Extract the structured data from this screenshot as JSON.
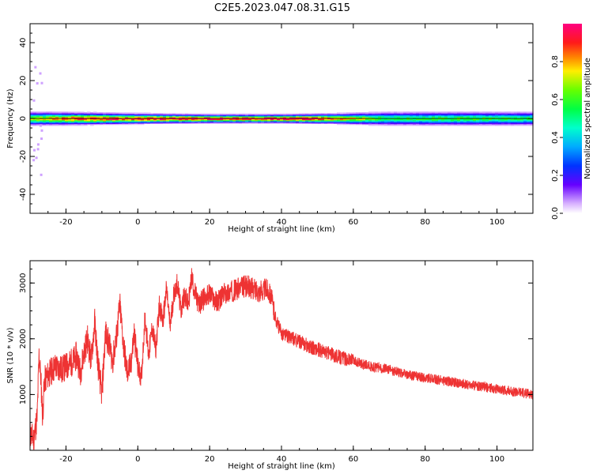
{
  "page_title": "C2E5.2023.047.08.31.G15",
  "chart_data": [
    {
      "type": "heatmap",
      "title": "C2E5.2023.047.08.31.G15",
      "xlabel": "Height of straight line (km)",
      "ylabel": "Frequency (Hz)",
      "xlim": [
        -30,
        110
      ],
      "ylim": [
        -50,
        50
      ],
      "x_ticks": [
        -20,
        0,
        20,
        40,
        60,
        80,
        100
      ],
      "y_ticks": [
        -40,
        -20,
        0,
        20,
        40
      ],
      "grid": false,
      "colorbar": {
        "label": "Normalized spectral amplitude",
        "range": [
          0,
          1
        ],
        "ticks": [
          "0.0",
          "0.2",
          "0.4",
          "0.6",
          "0.8"
        ],
        "colormap": "gist_rainbow_r"
      },
      "signal": {
        "center_frequency_hz": 0,
        "band_halfwidth_hz": [
          {
            "x": -30,
            "w": 4
          },
          {
            "x": 0,
            "w": 3
          },
          {
            "x": 20,
            "w": 2.5
          },
          {
            "x": 40,
            "w": 2.5
          },
          {
            "x": 55,
            "w": 3
          },
          {
            "x": 70,
            "w": 4
          },
          {
            "x": 90,
            "w": 4
          },
          {
            "x": 110,
            "w": 4
          }
        ],
        "core_amplitude": [
          {
            "x": -30,
            "a": 0.7
          },
          {
            "x": -15,
            "a": 0.95
          },
          {
            "x": 0,
            "a": 0.95
          },
          {
            "x": 20,
            "a": 1.0
          },
          {
            "x": 40,
            "a": 1.0
          },
          {
            "x": 50,
            "a": 0.95
          },
          {
            "x": 60,
            "a": 0.75
          },
          {
            "x": 70,
            "a": 0.55
          },
          {
            "x": 90,
            "a": 0.6
          },
          {
            "x": 110,
            "a": 0.55
          }
        ]
      }
    },
    {
      "type": "line",
      "title": "",
      "xlabel": "Height of straight line (km)",
      "ylabel": "SNR (10 * v/v)",
      "xlim": [
        -30,
        110
      ],
      "ylim": [
        0,
        3400
      ],
      "x_ticks": [
        -20,
        0,
        20,
        40,
        60,
        80,
        100
      ],
      "y_ticks": [
        1000,
        2000,
        3000
      ],
      "grid": false,
      "series": [
        {
          "color": "#ee3333",
          "x": [
            -30,
            -29,
            -28,
            -27.5,
            -27,
            -26.5,
            -26,
            -25,
            -23,
            -21,
            -20,
            -18,
            -17,
            -16,
            -15,
            -14,
            -13,
            -12,
            -11,
            -10,
            -9,
            -8,
            -7,
            -6,
            -5,
            -4,
            -3,
            -2,
            -1,
            0,
            1,
            2,
            3,
            4,
            5,
            6,
            7,
            8,
            9,
            10,
            11,
            12,
            13,
            14,
            15,
            16,
            17,
            18,
            20,
            22,
            24,
            26,
            28,
            30,
            32,
            34,
            36,
            37,
            38,
            39,
            40,
            45,
            50,
            55,
            60,
            65,
            70,
            75,
            80,
            85,
            90,
            95,
            100,
            105,
            110
          ],
          "y": [
            300,
            200,
            600,
            1700,
            1300,
            600,
            1250,
            1350,
            1500,
            1450,
            1500,
            1600,
            1700,
            1400,
            1750,
            2000,
            1600,
            2300,
            1500,
            1000,
            2100,
            1900,
            1600,
            2000,
            2600,
            1900,
            1400,
            1500,
            2100,
            1500,
            1300,
            2400,
            1700,
            2200,
            1800,
            2600,
            2300,
            2900,
            2200,
            2800,
            3000,
            2500,
            2800,
            2600,
            3100,
            2800,
            2600,
            2700,
            2800,
            2650,
            2800,
            2850,
            2900,
            2950,
            2900,
            2850,
            2900,
            2800,
            2450,
            2250,
            2100,
            1950,
            1800,
            1700,
            1600,
            1500,
            1450,
            1350,
            1300,
            1250,
            1200,
            1150,
            1100,
            1050,
            1000
          ]
        }
      ]
    }
  ]
}
